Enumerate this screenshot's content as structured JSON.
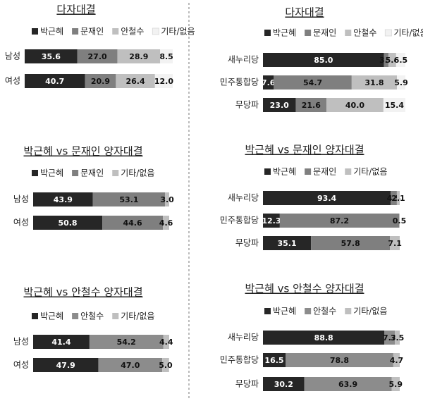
{
  "chart_data": [
    {
      "type": "bar",
      "orientation": "horizontal",
      "stacked": true,
      "title": "다자대결",
      "categories": [
        "남성",
        "여성"
      ],
      "series": [
        {
          "name": "박근혜",
          "color": "#262626",
          "values": [
            35.6,
            40.7
          ],
          "value_labels": [
            "35.6",
            "40.7"
          ]
        },
        {
          "name": "문재인",
          "color": "#7f7f7f",
          "values": [
            27.0,
            20.9
          ],
          "value_labels": [
            "27.0",
            "20.9"
          ]
        },
        {
          "name": "안철수",
          "color": "#bfbfbf",
          "values": [
            28.9,
            26.4
          ],
          "value_labels": [
            "28.9",
            "26.4"
          ]
        },
        {
          "name": "기타/없음",
          "color": "#f2f2f2",
          "values": [
            8.5,
            12.0
          ],
          "value_labels": [
            "8.5",
            "12.0"
          ]
        }
      ]
    },
    {
      "type": "bar",
      "orientation": "horizontal",
      "stacked": true,
      "title": "다자대결",
      "categories": [
        "새누리당",
        "민주통합당",
        "무당파"
      ],
      "series": [
        {
          "name": "박근혜",
          "color": "#262626",
          "values": [
            85.0,
            7.6,
            23.0
          ],
          "value_labels": [
            "85.0",
            "7.6",
            "23.0"
          ]
        },
        {
          "name": "문재인",
          "color": "#7f7f7f",
          "values": [
            3.1,
            54.7,
            21.6
          ],
          "value_labels": [
            "3.1",
            "54.7",
            "21.6"
          ]
        },
        {
          "name": "안철수",
          "color": "#bfbfbf",
          "values": [
            5.4,
            31.8,
            40.0
          ],
          "value_labels": [
            "5.4",
            "31.8",
            "40.0"
          ]
        },
        {
          "name": "기타/없음",
          "color": "#f2f2f2",
          "values": [
            6.5,
            5.9,
            15.4
          ],
          "value_labels": [
            "6.5",
            "5.9",
            "15.4"
          ]
        }
      ]
    },
    {
      "type": "bar",
      "orientation": "horizontal",
      "stacked": true,
      "title": "박근혜 vs 문재인 양자대결",
      "categories": [
        "남성",
        "여성"
      ],
      "series": [
        {
          "name": "박근혜",
          "color": "#262626",
          "values": [
            43.9,
            50.8
          ],
          "value_labels": [
            "43.9",
            "50.8"
          ]
        },
        {
          "name": "문재인",
          "color": "#7f7f7f",
          "values": [
            53.1,
            44.6
          ],
          "value_labels": [
            "53.1",
            "44.6"
          ]
        },
        {
          "name": "기타/없음",
          "color": "#bfbfbf",
          "values": [
            3.0,
            4.6
          ],
          "value_labels": [
            "3.0",
            "4.6"
          ]
        }
      ]
    },
    {
      "type": "bar",
      "orientation": "horizontal",
      "stacked": true,
      "title": "박근혜 vs 문재인 양자대결",
      "categories": [
        "새누리당",
        "민주통합당",
        "무당파"
      ],
      "series": [
        {
          "name": "박근혜",
          "color": "#262626",
          "values": [
            93.4,
            12.3,
            35.1
          ],
          "value_labels": [
            "93.4",
            "12.3",
            "35.1"
          ]
        },
        {
          "name": "문재인",
          "color": "#7f7f7f",
          "values": [
            4.5,
            87.2,
            57.8
          ],
          "value_labels": [
            "4.5",
            "87.2",
            "57.8"
          ]
        },
        {
          "name": "기타/없음",
          "color": "#bfbfbf",
          "values": [
            2.1,
            0.5,
            7.1
          ],
          "value_labels": [
            "2.1",
            "0.5",
            "7.1"
          ]
        }
      ]
    },
    {
      "type": "bar",
      "orientation": "horizontal",
      "stacked": true,
      "title": "박근혜 vs 안철수 양자대결",
      "categories": [
        "남성",
        "여성"
      ],
      "series": [
        {
          "name": "박근혜",
          "color": "#262626",
          "values": [
            41.4,
            47.9
          ],
          "value_labels": [
            "41.4",
            "47.9"
          ]
        },
        {
          "name": "안철수",
          "color": "#8c8c8c",
          "values": [
            54.2,
            47.0
          ],
          "value_labels": [
            "54.2",
            "47.0"
          ]
        },
        {
          "name": "기타/없음",
          "color": "#bfbfbf",
          "values": [
            4.4,
            5.0
          ],
          "value_labels": [
            "4.4",
            "5.0"
          ]
        }
      ]
    },
    {
      "type": "bar",
      "orientation": "horizontal",
      "stacked": true,
      "title": "박근혜 vs 안철수 양자대결",
      "categories": [
        "새누리당",
        "민주통합당",
        "무당파"
      ],
      "series": [
        {
          "name": "박근혜",
          "color": "#262626",
          "values": [
            88.8,
            16.5,
            30.2
          ],
          "value_labels": [
            "88.8",
            "16.5",
            "30.2"
          ]
        },
        {
          "name": "안철수",
          "color": "#8c8c8c",
          "values": [
            7.7,
            78.8,
            63.9
          ],
          "value_labels": [
            "7.7",
            "78.8",
            "63.9"
          ]
        },
        {
          "name": "기타/없음",
          "color": "#bfbfbf",
          "values": [
            3.5,
            4.7,
            5.9
          ],
          "value_labels": [
            "3.5",
            "4.7",
            "5.9"
          ]
        }
      ]
    }
  ]
}
